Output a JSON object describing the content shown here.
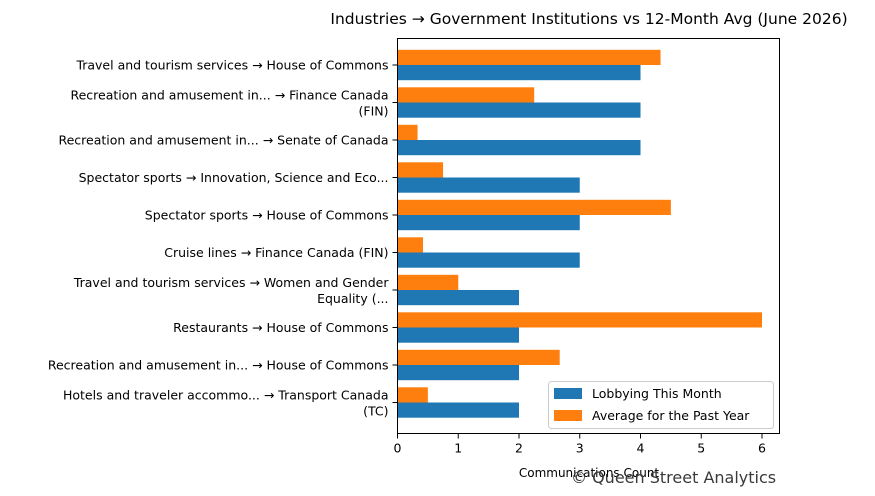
{
  "chart_data": {
    "type": "bar",
    "orientation": "horizontal",
    "title": "Industries → Government Institutions vs 12-Month Avg (June 2026)",
    "xlabel": "Communications Count",
    "ylabel": "",
    "xlim": [
      0,
      6.3
    ],
    "xticks": [
      "0",
      "1",
      "2",
      "3",
      "4",
      "5",
      "6"
    ],
    "grid": false,
    "legend_position": "lower-right",
    "categories": [
      [
        "Travel and tourism services → House of Commons"
      ],
      [
        "Recreation and amusement in... → Finance Canada",
        "(FIN)"
      ],
      [
        "Recreation and amusement in... → Senate of Canada"
      ],
      [
        "Spectator sports → Innovation, Science and Eco..."
      ],
      [
        "Spectator sports → House of Commons"
      ],
      [
        "Cruise lines → Finance Canada (FIN)"
      ],
      [
        "Travel and tourism services → Women and Gender",
        "Equality (..."
      ],
      [
        "Restaurants → House of Commons"
      ],
      [
        "Recreation and amusement in... → House of Commons"
      ],
      [
        "Hotels and traveler accommo... → Transport Canada",
        "(TC)"
      ]
    ],
    "series": [
      {
        "name": "Lobbying This Month",
        "color": "#1f77b4",
        "values": [
          4,
          4,
          4,
          3,
          3,
          3,
          2,
          2,
          2,
          2
        ]
      },
      {
        "name": "Average for the Past Year",
        "color": "#ff7f0e",
        "values": [
          4.33,
          2.25,
          0.33,
          0.75,
          4.5,
          0.42,
          1.0,
          6.0,
          2.67,
          0.5
        ]
      }
    ]
  },
  "watermark": "© Queen Street Analytics"
}
